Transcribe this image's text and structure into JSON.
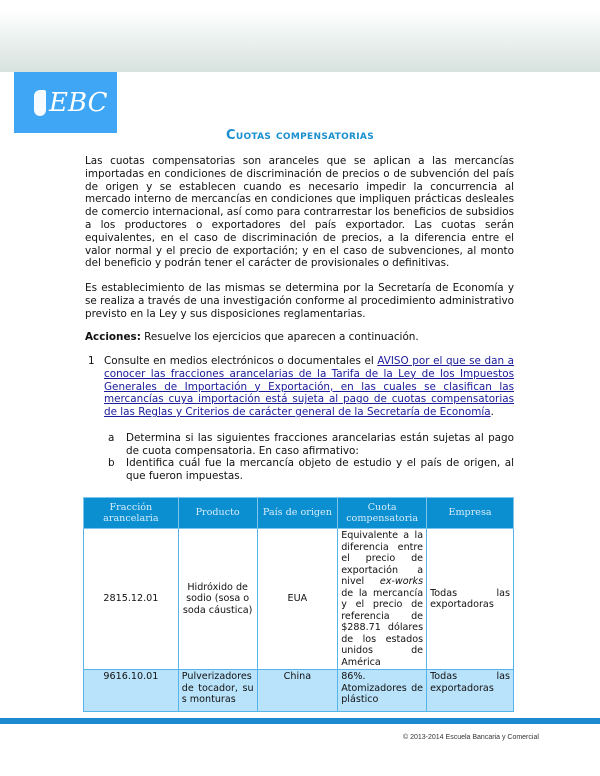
{
  "logo": {
    "text": "EBC"
  },
  "title": "Cuotas compensatorias",
  "paragraphs": [
    "Las cuotas compensatorias son aranceles que se aplican a las mercancías importadas en condiciones de discriminación de precios o de subvención del país de origen y se establecen cuando es necesario impedir la concurrencia al mercado interno de mercancías en condiciones que impliquen prácticas desleales de comercio internacional, así como para contrarrestar los beneficios de subsidios a los productores o exportadores del país exportador. Las cuotas serán equivalentes, en el caso de discriminación de precios, a la diferencia entre el valor normal y el precio de exportación; y en el caso de subvenciones, al monto del beneficio y podrán tener el carácter de provisionales o definitivas.",
    "Es establecimiento de las mismas se determina por la Secretaría de Economía y se realiza a través de una investigación conforme al procedimiento administrativo previsto en la Ley y sus disposiciones reglamentarias."
  ],
  "acciones": {
    "label": "Acciones:",
    "text": " Resuelve los ejercicios que aparecen a continuación."
  },
  "item1": {
    "number": "1",
    "text": "Consulte en medios electrónicos o documentales el ",
    "link": "AVISO por el que se dan a conocer las fracciones arancelarias de la Tarifa de la Ley de los Impuestos Generales de Importación y Exportación, en las cuales se clasifican las mercancías cuya importación está sujeta al pago de cuotas compensatorias de las Reglas y Criterios de carácter general de la Secretaría de Economía",
    "end": "."
  },
  "subitems": [
    {
      "letter": "a",
      "text": "Determina si las siguientes fracciones arancelarias están sujetas al pago de cuota compensatoria. En caso afirmativo:"
    },
    {
      "letter": "b",
      "text": "Identifica cuál fue la mercancía objeto de estudio y el país de origen, al que fueron impuestas."
    }
  ],
  "table": {
    "headers": [
      "Fracción arancelaria",
      "Producto",
      "País de origen",
      "Cuota compensatoria",
      "Empresa"
    ],
    "rows": [
      {
        "fraccion": "2815.12.01",
        "producto": "Hidróxido de sodio (sosa o soda cáustica)",
        "pais": "EUA",
        "cuota_a": "Equivalente a la diferencia entre el precio de exportación a nivel ",
        "cuota_em": "ex-works",
        "cuota_b": " de la mercancía y el precio de referencia de $288.71 dólares de los estados unidos de América",
        "empresa": "Todas las exportadoras"
      },
      {
        "fraccion": "9616.10.01",
        "producto": "Pulverizadores de tocador, sus monturas",
        "pais": "China",
        "cuota_a": "86%. Atomizadores de plástico",
        "cuota_em": "",
        "cuota_b": "",
        "empresa": "Todas las exportadoras"
      }
    ]
  },
  "footer": {
    "copyright": "© 2013-2014 Escuela Bancaria y Comercial"
  },
  "colors": {
    "accent": "#1a8fd0",
    "table_header": "#0b8fd0",
    "row_alt": "#b9e3fa",
    "bar": "#1e88d0"
  }
}
